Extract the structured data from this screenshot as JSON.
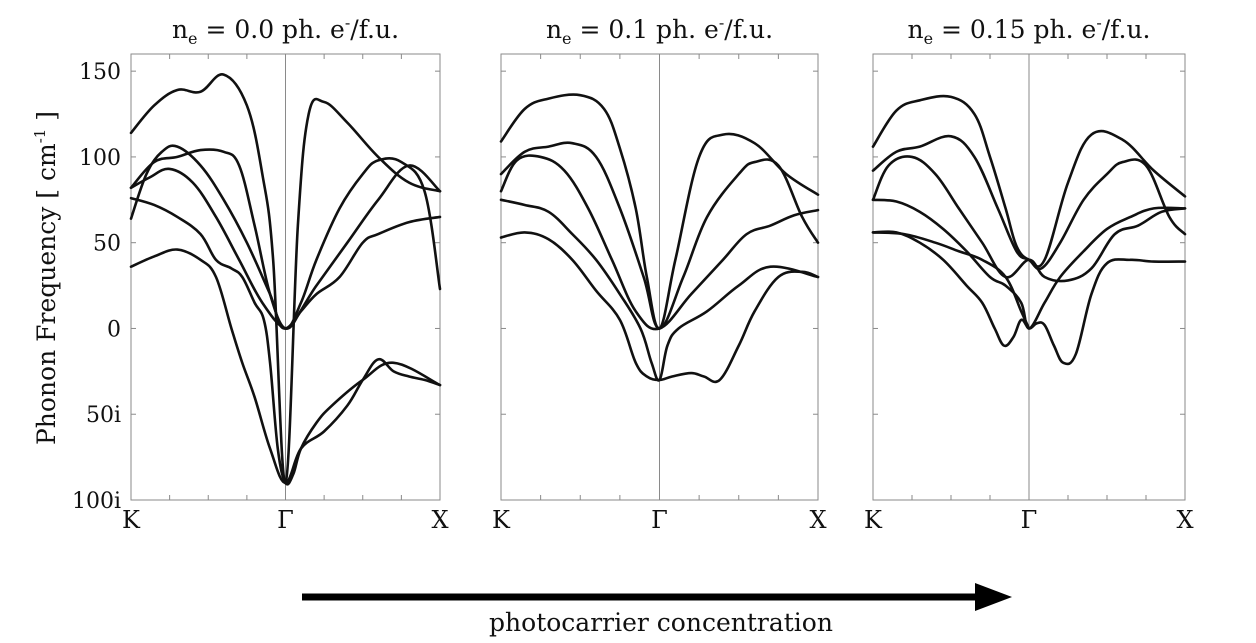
{
  "chart_data": [
    {
      "type": "line",
      "title_parts": {
        "sym": "n",
        "sub": "e",
        "value": " = 0.0 ph. e",
        "sup": "-",
        "unit": "/f.u."
      },
      "xlabel": "",
      "ylabel": "Phonon Frequency [ cm-1 ]",
      "ylabel_parts": {
        "main": "Phonon Frequency [ cm",
        "sup": "-1",
        "end": " ]"
      },
      "ylim": [
        -100,
        160
      ],
      "yticks": [
        150,
        100,
        50,
        0,
        -50,
        -100
      ],
      "ytick_labels": [
        "150",
        "100",
        "50",
        "0",
        "50i",
        "100i"
      ],
      "xlim": [
        0,
        2
      ],
      "xticks": [
        0,
        1,
        2
      ],
      "xtick_labels": [
        "K",
        "Γ",
        "X"
      ],
      "grid": false,
      "series": [
        {
          "x": [
            0,
            0.15,
            0.3,
            0.45,
            0.6,
            0.75,
            0.85,
            0.92,
            1.0,
            1.08,
            1.15,
            1.25,
            1.4,
            1.6,
            1.8,
            2.0
          ],
          "values": [
            114,
            130,
            139,
            138,
            148,
            130,
            90,
            40,
            -90,
            60,
            125,
            132,
            120,
            100,
            85,
            80
          ]
        },
        {
          "x": [
            0,
            0.15,
            0.3,
            0.45,
            0.6,
            0.7,
            0.8,
            0.9,
            1.0,
            1.1,
            1.2,
            1.35,
            1.5,
            1.6,
            1.75,
            1.9,
            2.0
          ],
          "values": [
            82,
            97,
            100,
            104,
            103,
            95,
            60,
            20,
            0,
            15,
            40,
            70,
            90,
            98,
            97,
            80,
            23
          ]
        },
        {
          "x": [
            0,
            0.1,
            0.2,
            0.3,
            0.45,
            0.6,
            0.75,
            0.9,
            1.0,
            1.2,
            1.4,
            1.6,
            1.8,
            2.0
          ],
          "values": [
            64,
            90,
            103,
            106,
            95,
            75,
            50,
            20,
            0,
            25,
            50,
            75,
            95,
            80
          ]
        },
        {
          "x": [
            0,
            0.12,
            0.25,
            0.4,
            0.55,
            0.7,
            0.85,
            1.0,
            1.1,
            1.2,
            1.35,
            1.5,
            1.6,
            1.8,
            2.0
          ],
          "values": [
            82,
            88,
            93,
            85,
            65,
            40,
            15,
            0,
            10,
            20,
            30,
            50,
            55,
            62,
            65
          ]
        },
        {
          "x": [
            0,
            0.15,
            0.3,
            0.45,
            0.55,
            0.65,
            0.72,
            0.8,
            0.86,
            0.9,
            0.95,
            1.0,
            1.05,
            1.1,
            1.2,
            1.3,
            1.5,
            1.7,
            2.0
          ],
          "values": [
            76,
            72,
            65,
            55,
            40,
            35,
            30,
            15,
            5,
            -20,
            -70,
            -90,
            -85,
            -70,
            -55,
            -45,
            -30,
            -20,
            -33
          ]
        },
        {
          "x": [
            0,
            0.15,
            0.3,
            0.45,
            0.55,
            0.65,
            0.72,
            0.8,
            0.9,
            1.0,
            1.1,
            1.25,
            1.4,
            1.5,
            1.6,
            1.7,
            1.8,
            1.9,
            2.0
          ],
          "values": [
            36,
            42,
            46,
            40,
            30,
            0,
            -20,
            -40,
            -70,
            -90,
            -70,
            -60,
            -45,
            -30,
            -18,
            -25,
            -28,
            -30,
            -33
          ]
        }
      ]
    },
    {
      "type": "line",
      "title_parts": {
        "sym": "n",
        "sub": "e",
        "value": " = 0.1 ph. e",
        "sup": "-",
        "unit": "/f.u."
      },
      "xlabel": "",
      "ylabel": "",
      "ylim": [
        -100,
        160
      ],
      "yticks": [
        150,
        100,
        50,
        0,
        -50,
        -100
      ],
      "ytick_labels": [],
      "xlim": [
        0,
        2
      ],
      "xticks": [
        0,
        1,
        2
      ],
      "xtick_labels": [
        "K",
        "Γ",
        "X"
      ],
      "grid": false,
      "series": [
        {
          "x": [
            0,
            0.15,
            0.3,
            0.5,
            0.65,
            0.75,
            0.85,
            0.92,
            1.0,
            1.1,
            1.25,
            1.4,
            1.6,
            1.8,
            2.0
          ],
          "values": [
            109,
            128,
            134,
            136,
            128,
            105,
            70,
            30,
            0,
            40,
            100,
            113,
            108,
            90,
            78
          ]
        },
        {
          "x": [
            0,
            0.15,
            0.3,
            0.45,
            0.6,
            0.75,
            0.9,
            1.0,
            1.15,
            1.3,
            1.5,
            1.6,
            1.75,
            1.9,
            2.0
          ],
          "values": [
            90,
            103,
            106,
            108,
            100,
            70,
            30,
            0,
            30,
            65,
            90,
            97,
            95,
            65,
            50
          ]
        },
        {
          "x": [
            0,
            0.1,
            0.25,
            0.4,
            0.55,
            0.7,
            0.85,
            1.0,
            1.2,
            1.4,
            1.55,
            1.7,
            1.85,
            2.0
          ],
          "values": [
            80,
            98,
            100,
            92,
            70,
            40,
            10,
            0,
            20,
            40,
            55,
            60,
            66,
            69
          ]
        },
        {
          "x": [
            0,
            0.15,
            0.3,
            0.45,
            0.6,
            0.75,
            0.88,
            0.95,
            1.0,
            1.05,
            1.12,
            1.3,
            1.5,
            1.7,
            2.0
          ],
          "values": [
            75,
            72,
            68,
            55,
            40,
            20,
            0,
            -20,
            -30,
            -10,
            0,
            10,
            25,
            36,
            30
          ]
        },
        {
          "x": [
            0,
            0.15,
            0.3,
            0.45,
            0.6,
            0.75,
            0.85,
            0.92,
            1.0,
            1.08,
            1.2,
            1.28,
            1.38,
            1.5,
            1.6,
            1.75,
            1.9,
            2.0
          ],
          "values": [
            53,
            56,
            52,
            40,
            22,
            5,
            -20,
            -28,
            -30,
            -28,
            -26,
            -28,
            -30,
            -10,
            10,
            30,
            33,
            30
          ]
        }
      ]
    },
    {
      "type": "line",
      "title_parts": {
        "sym": "n",
        "sub": "e",
        "value": " = 0.15 ph. e",
        "sup": "-",
        "unit": "/f.u."
      },
      "xlabel": "",
      "ylabel": "",
      "ylim": [
        -100,
        160
      ],
      "yticks": [
        150,
        100,
        50,
        0,
        -50,
        -100
      ],
      "ytick_labels": [],
      "xlim": [
        0,
        2
      ],
      "xticks": [
        0,
        1,
        2
      ],
      "xtick_labels": [
        "K",
        "Γ",
        "X"
      ],
      "grid": false,
      "series": [
        {
          "x": [
            0,
            0.15,
            0.3,
            0.5,
            0.65,
            0.75,
            0.85,
            0.92,
            1.0,
            1.1,
            1.25,
            1.4,
            1.6,
            1.8,
            2.0
          ],
          "values": [
            106,
            127,
            133,
            135,
            125,
            100,
            70,
            48,
            40,
            40,
            85,
            113,
            110,
            92,
            77
          ]
        },
        {
          "x": [
            0,
            0.15,
            0.3,
            0.5,
            0.65,
            0.8,
            0.92,
            1.0,
            1.08,
            1.2,
            1.35,
            1.5,
            1.6,
            1.75,
            1.9,
            2.0
          ],
          "values": [
            92,
            103,
            106,
            112,
            100,
            70,
            45,
            40,
            35,
            50,
            75,
            90,
            97,
            95,
            65,
            55
          ]
        },
        {
          "x": [
            0,
            0.1,
            0.25,
            0.4,
            0.55,
            0.7,
            0.85,
            1.0,
            1.1,
            1.25,
            1.4,
            1.55,
            1.7,
            1.85,
            2.0
          ],
          "values": [
            75,
            95,
            100,
            90,
            70,
            50,
            30,
            40,
            30,
            28,
            35,
            55,
            60,
            68,
            70
          ]
        },
        {
          "x": [
            0,
            0.15,
            0.3,
            0.45,
            0.6,
            0.75,
            0.85,
            0.95,
            1.0,
            1.1,
            1.2,
            1.35,
            1.5,
            1.65,
            1.8,
            2.0
          ],
          "values": [
            75,
            74,
            68,
            58,
            45,
            30,
            25,
            15,
            0,
            15,
            30,
            45,
            58,
            65,
            70,
            70
          ]
        },
        {
          "x": [
            0,
            0.15,
            0.3,
            0.45,
            0.6,
            0.7,
            0.78,
            0.84,
            0.9,
            0.95,
            1.0,
            1.05,
            1.1,
            1.16,
            1.22,
            1.3,
            1.4,
            1.5,
            1.65,
            1.8,
            2.0
          ],
          "values": [
            56,
            56,
            50,
            40,
            25,
            15,
            0,
            -10,
            -5,
            5,
            0,
            3,
            2,
            -10,
            -20,
            -15,
            20,
            38,
            40,
            39,
            39
          ]
        },
        {
          "x": [
            0,
            0.2,
            0.4,
            0.55,
            0.7,
            0.85,
            0.95,
            1.0
          ],
          "values": [
            56,
            55,
            50,
            45,
            40,
            30,
            10,
            0
          ]
        }
      ]
    }
  ],
  "arrow": {
    "label": "photocarrier concentration"
  }
}
